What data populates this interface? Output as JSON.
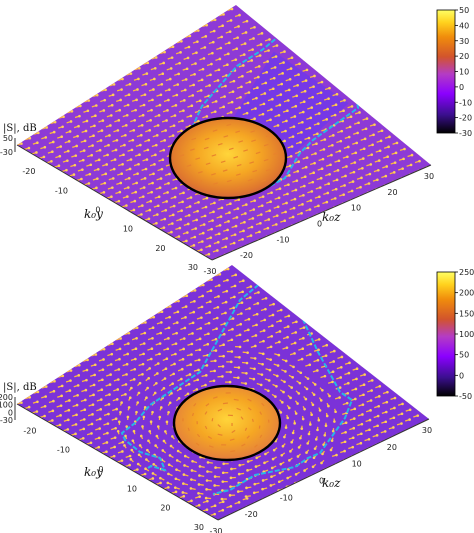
{
  "chart_data": [
    {
      "type": "heatmap",
      "subtype": "3d-surface-with-vector-field",
      "zlabel": "|S|, dB",
      "xlabel": "k₀y",
      "ylabel": "k₀z",
      "xlim": [
        -30,
        30
      ],
      "ylim": [
        -30,
        30
      ],
      "x_ticks": [
        "-20",
        "-10",
        "0",
        "10",
        "20",
        "30"
      ],
      "y_ticks": [
        "-30",
        "-20",
        "-10",
        "0",
        "10",
        "20",
        "30"
      ],
      "z_ticks": [
        "50",
        "-30"
      ],
      "colorbar": {
        "min": -30,
        "max": 50,
        "ticks": [
          "50",
          "40",
          "30",
          "20",
          "10",
          "0",
          "-10",
          "-20",
          "-30"
        ]
      },
      "colormap": [
        "#000000",
        "#3b0f8f",
        "#8b00ff",
        "#b43cc4",
        "#d2542c",
        "#f08c0c",
        "#ffd21e",
        "#ffff64"
      ],
      "background_color": "#8d3ad6",
      "circle_color": "#000000",
      "contour_color": "#27b5e8",
      "arrow_color": "#ffb73c"
    },
    {
      "type": "heatmap",
      "subtype": "3d-surface-with-vector-field",
      "zlabel": "|S|, dB",
      "xlabel": "k₀y",
      "ylabel": "k₀z",
      "xlim": [
        -30,
        30
      ],
      "ylim": [
        -30,
        30
      ],
      "x_ticks": [
        "-20",
        "-10",
        "0",
        "10",
        "20",
        "30"
      ],
      "y_ticks": [
        "-30",
        "-20",
        "-10",
        "0",
        "10",
        "20",
        "30"
      ],
      "z_ticks": [
        "200",
        "100",
        "0",
        "-30"
      ],
      "colorbar": {
        "min": -50,
        "max": 250,
        "ticks": [
          "250",
          "200",
          "150",
          "100",
          "50",
          "0",
          "-50"
        ]
      },
      "colormap": [
        "#000000",
        "#3b0f8f",
        "#8b00ff",
        "#b43cc4",
        "#d2542c",
        "#f08c0c",
        "#ffd21e",
        "#ffff64"
      ],
      "background_color": "#7b32d8",
      "circle_color": "#000000",
      "contour_color": "#27b5e8",
      "arrow_color": "#ffb73c"
    }
  ]
}
